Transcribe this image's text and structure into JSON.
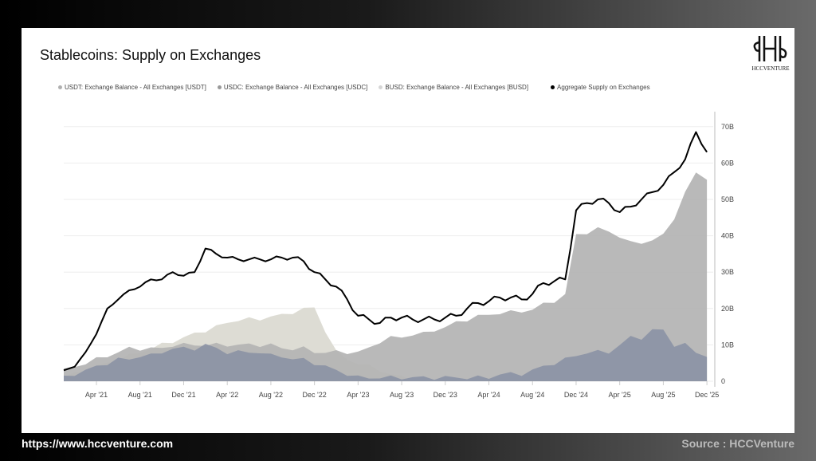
{
  "footer": {
    "url": "https://www.hccventure.com",
    "source": "Source : HCCVenture"
  },
  "logo": {
    "text": "HCCVENTURE"
  },
  "chart_data": {
    "type": "area",
    "title": "Stablecoins: Supply on Exchanges",
    "xlabel": "",
    "ylabel": "",
    "legend_position": "top-left",
    "y_ticks": [
      "0",
      "10B",
      "20B",
      "30B",
      "40B",
      "50B",
      "60B",
      "70B"
    ],
    "ylim": [
      0,
      72
    ],
    "x_start": "Jan 2021",
    "x_step": "month",
    "x_ticks": [
      {
        "label": "Apr '21",
        "m": 3
      },
      {
        "label": "Aug '21",
        "m": 7
      },
      {
        "label": "Dec '21",
        "m": 11
      },
      {
        "label": "Apr '22",
        "m": 15
      },
      {
        "label": "Aug '22",
        "m": 19
      },
      {
        "label": "Dec '22",
        "m": 23
      },
      {
        "label": "Apr '23",
        "m": 27
      },
      {
        "label": "Aug '23",
        "m": 31
      },
      {
        "label": "Dec '23",
        "m": 35
      },
      {
        "label": "Apr '24",
        "m": 39
      },
      {
        "label": "Aug '24",
        "m": 43
      },
      {
        "label": "Dec '24",
        "m": 47
      },
      {
        "label": "Apr '25",
        "m": 51
      },
      {
        "label": "Aug '25",
        "m": 55
      },
      {
        "label": "Dec '25",
        "m": 59
      }
    ],
    "series": [
      {
        "name": "BUSD: Exchange Balance - All Exchanges [BUSD]",
        "kind": "area",
        "color": "#d9d8cf",
        "legend_color": "#d6d6d6",
        "values": [
          1,
          2,
          3,
          4,
          5,
          6,
          7,
          8,
          9,
          10,
          11,
          12,
          13,
          14,
          15,
          16,
          17,
          17,
          17,
          18,
          18,
          19,
          20,
          20,
          14,
          8,
          6,
          5,
          4,
          3,
          2,
          1,
          0.5,
          0,
          0,
          0,
          0,
          0,
          0,
          0,
          0,
          0,
          0,
          0,
          0,
          0,
          0,
          0,
          0,
          0,
          0,
          0,
          0,
          0,
          0,
          0,
          0,
          0,
          0,
          0
        ]
      },
      {
        "name": "USDT: Exchange Balance - All Exchanges [USDT]",
        "kind": "area",
        "color": "#b3b3b3",
        "legend_color": "#b0b0b0",
        "values": [
          3,
          4,
          5,
          6,
          7,
          8,
          9,
          9,
          9,
          9,
          10,
          10,
          10,
          10,
          10,
          10,
          10,
          10,
          10,
          10,
          9,
          9,
          9,
          8,
          8,
          8,
          8,
          8,
          9,
          11,
          12,
          12,
          13,
          13,
          14,
          15,
          16,
          17,
          18,
          18,
          19,
          19,
          19,
          20,
          21,
          22,
          24,
          40,
          41,
          42,
          41,
          40,
          38,
          38,
          39,
          40,
          45,
          52,
          57,
          56
        ]
      },
      {
        "name": "USDC: Exchange Balance - All Exchanges [USDC]",
        "kind": "area",
        "color": "#8b93a5",
        "legend_color": "#999999",
        "values": [
          1,
          2,
          3,
          4,
          5,
          6,
          6,
          7,
          7,
          8,
          9,
          9,
          9,
          10,
          9,
          8,
          8,
          8,
          8,
          7,
          7,
          6,
          6,
          5,
          4,
          3,
          2,
          1,
          1,
          1,
          1,
          1,
          1,
          1,
          1,
          1,
          1,
          1,
          1,
          1,
          2,
          2,
          2,
          3,
          4,
          5,
          6,
          7,
          8,
          8,
          8,
          10,
          12,
          12,
          14,
          14,
          10,
          10,
          8,
          7
        ]
      },
      {
        "name": "Aggregate Supply on Exchanges",
        "kind": "line",
        "color": "#000000",
        "legend_color": "#000000",
        "values": [
          3,
          4,
          8,
          13,
          20,
          22.5,
          25,
          26,
          28,
          28,
          30,
          29,
          30,
          36.5,
          35,
          34,
          33.5,
          33.5,
          33.5,
          33.5,
          34,
          34,
          33,
          30,
          28,
          26,
          22.5,
          18,
          17,
          16,
          17.5,
          17.5,
          17,
          17,
          17,
          17.5,
          18,
          20,
          21.5,
          22,
          23,
          23,
          22.5,
          24,
          27,
          27.5,
          28,
          47,
          49,
          50,
          49,
          46.5,
          48,
          50,
          52,
          54,
          57.5,
          61,
          68.5,
          63
        ]
      }
    ]
  }
}
